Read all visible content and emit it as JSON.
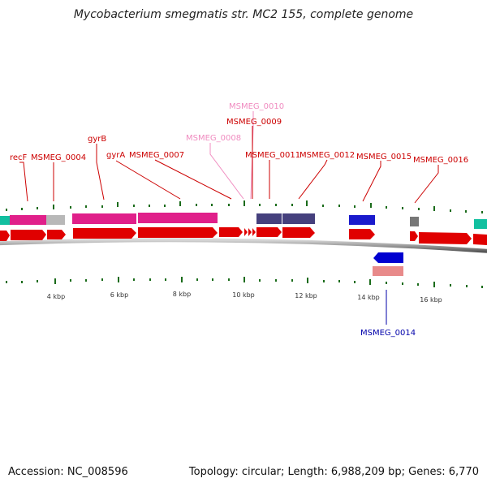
{
  "title": "Mycobacterium smegmatis str. MC2 155, complete genome",
  "accession": "Accession: NC_008596",
  "topology": "Topology: circular; Length: 6,988,209 bp; Genes: 6,770",
  "kbp_labels": [
    "4 kbp",
    "6 kbp",
    "8 kbp",
    "10 kbp",
    "12 kbp",
    "14 kbp",
    "16 kbp"
  ],
  "gene_labels": {
    "recF": "recF",
    "MSMEG_0004": "MSMEG_0004",
    "gyrB": "gyrB",
    "gyrA": "gyrA",
    "MSMEG_0007": "MSMEG_0007",
    "MSMEG_0008": "MSMEG_0008",
    "MSMEG_0009": "MSMEG_0009",
    "MSMEG_0010": "MSMEG_0010",
    "MSMEG_0011": "MSMEG_0011",
    "MSMEG_0012": "MSMEG_0012",
    "MSMEG_0015": "MSMEG_0015",
    "MSMEG_0016": "MSMEG_0016",
    "MSMEG_0014": "MSMEG_0014"
  },
  "colors": {
    "cds_forward": "#e00000",
    "cds_reverse": "#0000d0",
    "gene_pink": "#e0208a",
    "gene_purple": "#45407d",
    "gene_blue": "#1a1acc",
    "gene_grey": "#b8b8b8",
    "gene_teal": "#12c0a0",
    "label_red": "#cc0000",
    "label_pink": "#f08cc0",
    "label_blue": "#0000aa",
    "tick_green": "#1a6b1a",
    "backbone": "#777777"
  }
}
